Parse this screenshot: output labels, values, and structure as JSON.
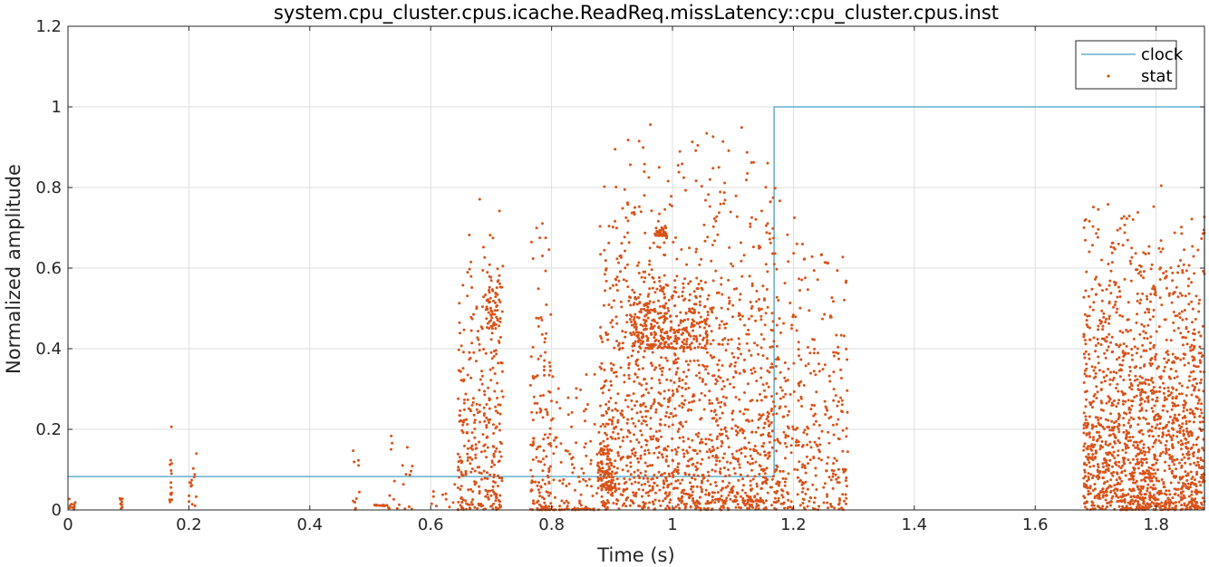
{
  "chart_data": {
    "type": "line+scatter",
    "title": "system.cpu_cluster.cpus.icache.ReadReq.missLatency::cpu_cluster.cpus.inst",
    "xlabel": "Time (s)",
    "ylabel": "Normalized amplitude",
    "xlim": [
      0,
      1.88
    ],
    "ylim": [
      0,
      1.2
    ],
    "xticks": [
      0,
      0.2,
      0.4,
      0.6,
      0.8,
      1,
      1.2,
      1.4,
      1.6,
      1.8
    ],
    "xtick_labels": [
      "0",
      "0.2",
      "0.4",
      "0.6",
      "0.8",
      "1",
      "1.2",
      "1.4",
      "1.6",
      "1.8"
    ],
    "yticks": [
      0,
      0.2,
      0.4,
      0.6,
      0.8,
      1,
      1.2
    ],
    "ytick_labels": [
      "0",
      "0.2",
      "0.4",
      "0.6",
      "0.8",
      "1",
      "1.2"
    ],
    "grid": true,
    "legend_position": "top-right",
    "series": [
      {
        "name": "clock",
        "kind": "line",
        "color": "#4A9FC4",
        "x": [
          0,
          1.168,
          1.168,
          1.88,
          1.88
        ],
        "y": [
          0.083,
          0.083,
          1.0,
          1.0,
          0
        ]
      },
      {
        "name": "stat",
        "kind": "scatter",
        "color": "#D95319",
        "clusters": [
          {
            "x_range": [
              0.0,
              0.012
            ],
            "y_range": [
              0,
              0.04
            ],
            "count": 12
          },
          {
            "x_range": [
              0.085,
              0.09
            ],
            "y_range": [
              0,
              0.09
            ],
            "count": 8
          },
          {
            "x_range": [
              0.168,
              0.172
            ],
            "y_range": [
              0,
              0.31
            ],
            "count": 14
          },
          {
            "x_range": [
              0.2,
              0.215
            ],
            "y_range": [
              0,
              0.19
            ],
            "count": 14
          },
          {
            "x_range": [
              0.47,
              0.485
            ],
            "y_range": [
              0,
              0.33
            ],
            "count": 10
          },
          {
            "x_range": [
              0.5,
              0.53
            ],
            "y_range": [
              0.01,
              0.015
            ],
            "count": 12
          },
          {
            "x_range": [
              0.52,
              0.57
            ],
            "y_range": [
              0,
              0.24
            ],
            "count": 20
          },
          {
            "x_range": [
              0.6,
              0.64
            ],
            "y_range": [
              0,
              0.1
            ],
            "count": 10
          },
          {
            "x_range": [
              0.645,
              0.72
            ],
            "y_range": [
              0,
              0.8
            ],
            "count": 330
          },
          {
            "x_range": [
              0.69,
              0.715
            ],
            "y_range": [
              0.45,
              0.62
            ],
            "count": 60
          },
          {
            "x_range": [
              0.765,
              0.8
            ],
            "y_range": [
              0,
              0.82
            ],
            "count": 140
          },
          {
            "x_range": [
              0.78,
              0.88
            ],
            "y_range": [
              0,
              0.005
            ],
            "count": 40
          },
          {
            "x_range": [
              0.8,
              0.875
            ],
            "y_range": [
              0,
              0.4
            ],
            "count": 80
          },
          {
            "x_range": [
              0.875,
              0.9
            ],
            "y_range": [
              0.05,
              0.2
            ],
            "count": 80
          },
          {
            "x_range": [
              0.88,
              1.17
            ],
            "y_range": [
              0,
              1.0
            ],
            "count": 1500
          },
          {
            "x_range": [
              0.93,
              1.06
            ],
            "y_range": [
              0.4,
              0.6
            ],
            "count": 300
          },
          {
            "x_range": [
              0.97,
              0.99
            ],
            "y_range": [
              0.68,
              0.71
            ],
            "count": 40
          },
          {
            "x_range": [
              1.1,
              1.15
            ],
            "y_range": [
              0.02,
              0.03
            ],
            "count": 15
          },
          {
            "x_range": [
              1.17,
              1.29
            ],
            "y_range": [
              0,
              0.79
            ],
            "count": 350
          },
          {
            "x_range": [
              1.68,
              1.88
            ],
            "y_range": [
              0,
              0.83
            ],
            "count": 1600
          }
        ]
      }
    ]
  }
}
